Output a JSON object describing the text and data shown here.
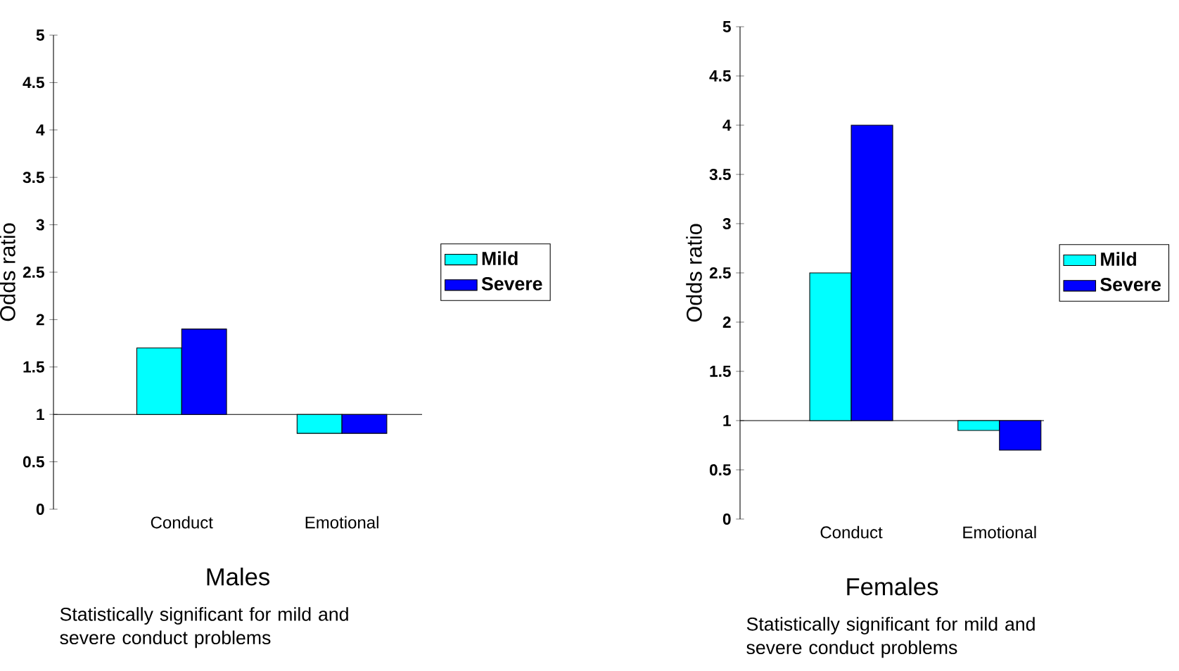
{
  "chart_data": [
    {
      "type": "bar",
      "xlabel": "Males",
      "ylabel": "Odds ratio",
      "categories": [
        "Conduct",
        "Emotional"
      ],
      "series": [
        {
          "name": "Mild",
          "color": "#00ffff",
          "values": [
            0.7,
            -0.2
          ],
          "base": [
            1,
            1
          ]
        },
        {
          "name": "Severe",
          "color": "#0000ff",
          "values": [
            0.9,
            -0.2
          ],
          "base": [
            1,
            1
          ]
        }
      ],
      "ylim": [
        0,
        5
      ],
      "yticks": [
        0,
        0.5,
        1,
        1.5,
        2,
        2.5,
        3,
        3.5,
        4,
        4.5,
        5
      ],
      "legend": "right",
      "annotations": [
        "Statistically significant for mild and severe conduct problems"
      ]
    },
    {
      "type": "bar",
      "xlabel": "Females",
      "ylabel": "Odds ratio",
      "categories": [
        "Conduct",
        "Emotional"
      ],
      "series": [
        {
          "name": "Mild",
          "color": "#00ffff",
          "values": [
            1.5,
            -0.1
          ],
          "base": [
            1,
            1
          ]
        },
        {
          "name": "Severe",
          "color": "#0000ff",
          "values": [
            3,
            -0.3
          ],
          "base": [
            1,
            1
          ]
        }
      ],
      "ylim": [
        0,
        5
      ],
      "yticks": [
        0,
        0.5,
        1,
        1.5,
        2,
        2.5,
        3,
        3.5,
        4,
        4.5,
        5
      ],
      "legend": "right",
      "annotations": [
        "Statistically significant for mild and severe conduct problems"
      ]
    }
  ]
}
